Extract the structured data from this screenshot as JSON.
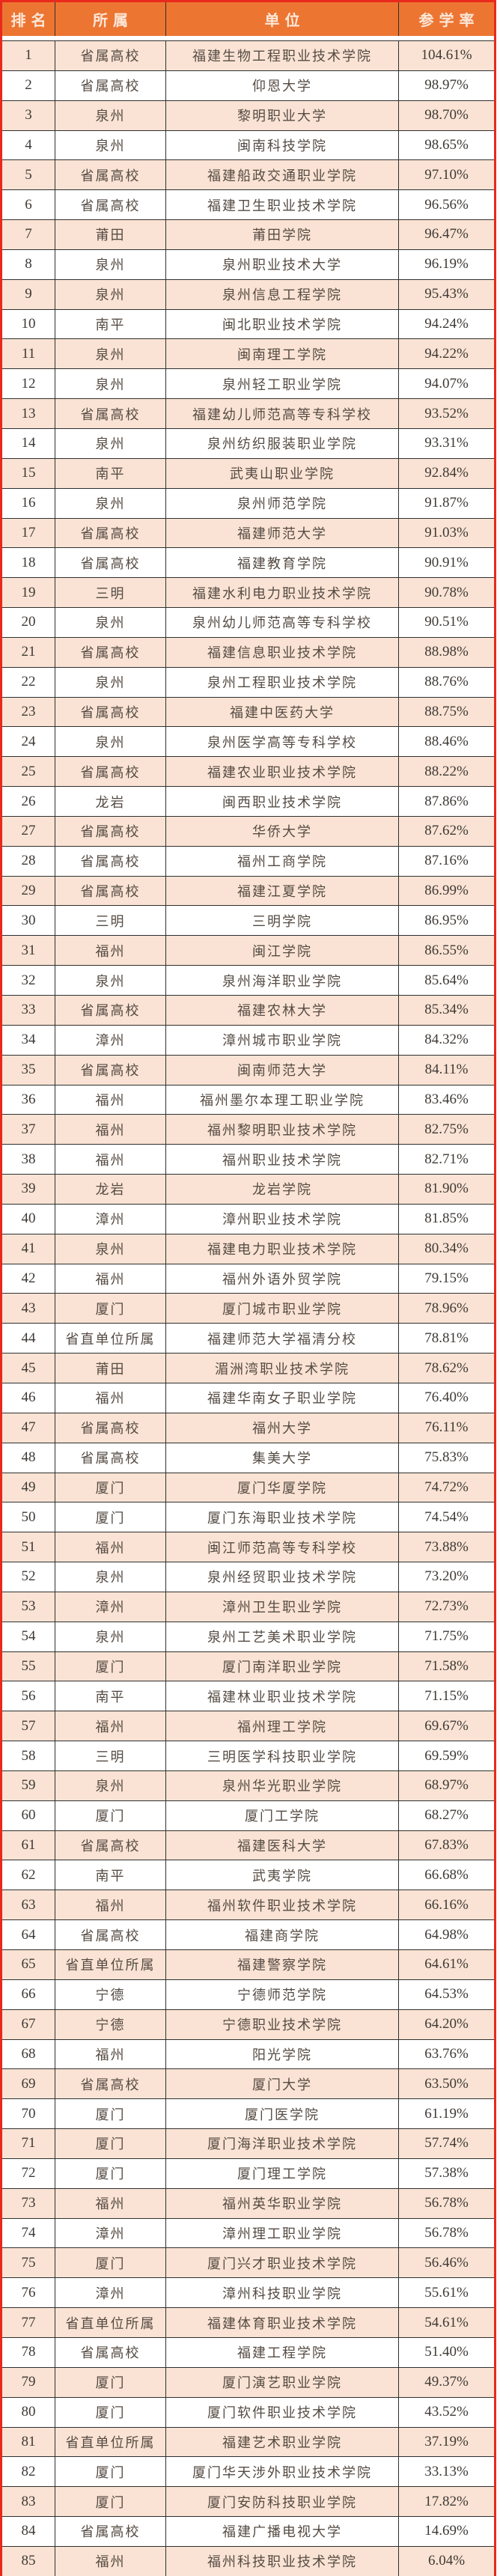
{
  "colors": {
    "header_bg": "#ED7532",
    "header_text": "#FCE8D9",
    "row_alt_bg": "#FAE3D4",
    "row_bg": "#FFFFFF",
    "outer_border": "#E8291B",
    "grid_line": "#2F2F2F",
    "body_text": "#554B43"
  },
  "table": {
    "headers": [
      "排名",
      "所属",
      "单位",
      "参学率"
    ],
    "rows": [
      {
        "rank": "1",
        "affiliation": "省属高校",
        "unit": "福建生物工程职业技术学院",
        "rate": "104.61%"
      },
      {
        "rank": "2",
        "affiliation": "省属高校",
        "unit": "仰恩大学",
        "rate": "98.97%"
      },
      {
        "rank": "3",
        "affiliation": "泉州",
        "unit": "黎明职业大学",
        "rate": "98.70%"
      },
      {
        "rank": "4",
        "affiliation": "泉州",
        "unit": "闽南科技学院",
        "rate": "98.65%"
      },
      {
        "rank": "5",
        "affiliation": "省属高校",
        "unit": "福建船政交通职业学院",
        "rate": "97.10%"
      },
      {
        "rank": "6",
        "affiliation": "省属高校",
        "unit": "福建卫生职业技术学院",
        "rate": "96.56%"
      },
      {
        "rank": "7",
        "affiliation": "莆田",
        "unit": "莆田学院",
        "rate": "96.47%"
      },
      {
        "rank": "8",
        "affiliation": "泉州",
        "unit": "泉州职业技术大学",
        "rate": "96.19%"
      },
      {
        "rank": "9",
        "affiliation": "泉州",
        "unit": "泉州信息工程学院",
        "rate": "95.43%"
      },
      {
        "rank": "10",
        "affiliation": "南平",
        "unit": "闽北职业技术学院",
        "rate": "94.24%"
      },
      {
        "rank": "11",
        "affiliation": "泉州",
        "unit": "闽南理工学院",
        "rate": "94.22%"
      },
      {
        "rank": "12",
        "affiliation": "泉州",
        "unit": "泉州轻工职业学院",
        "rate": "94.07%"
      },
      {
        "rank": "13",
        "affiliation": "省属高校",
        "unit": "福建幼儿师范高等专科学校",
        "rate": "93.52%"
      },
      {
        "rank": "14",
        "affiliation": "泉州",
        "unit": "泉州纺织服装职业学院",
        "rate": "93.31%"
      },
      {
        "rank": "15",
        "affiliation": "南平",
        "unit": "武夷山职业学院",
        "rate": "92.84%"
      },
      {
        "rank": "16",
        "affiliation": "泉州",
        "unit": "泉州师范学院",
        "rate": "91.87%"
      },
      {
        "rank": "17",
        "affiliation": "省属高校",
        "unit": "福建师范大学",
        "rate": "91.03%"
      },
      {
        "rank": "18",
        "affiliation": "省属高校",
        "unit": "福建教育学院",
        "rate": "90.91%"
      },
      {
        "rank": "19",
        "affiliation": "三明",
        "unit": "福建水利电力职业技术学院",
        "rate": "90.78%"
      },
      {
        "rank": "20",
        "affiliation": "泉州",
        "unit": "泉州幼儿师范高等专科学校",
        "rate": "90.51%"
      },
      {
        "rank": "21",
        "affiliation": "省属高校",
        "unit": "福建信息职业技术学院",
        "rate": "88.98%"
      },
      {
        "rank": "22",
        "affiliation": "泉州",
        "unit": "泉州工程职业技术学院",
        "rate": "88.76%"
      },
      {
        "rank": "23",
        "affiliation": "省属高校",
        "unit": "福建中医药大学",
        "rate": "88.75%"
      },
      {
        "rank": "24",
        "affiliation": "泉州",
        "unit": "泉州医学高等专科学校",
        "rate": "88.46%"
      },
      {
        "rank": "25",
        "affiliation": "省属高校",
        "unit": "福建农业职业技术学院",
        "rate": "88.22%"
      },
      {
        "rank": "26",
        "affiliation": "龙岩",
        "unit": "闽西职业技术学院",
        "rate": "87.86%"
      },
      {
        "rank": "27",
        "affiliation": "省属高校",
        "unit": "华侨大学",
        "rate": "87.62%"
      },
      {
        "rank": "28",
        "affiliation": "省属高校",
        "unit": "福州工商学院",
        "rate": "87.16%"
      },
      {
        "rank": "29",
        "affiliation": "省属高校",
        "unit": "福建江夏学院",
        "rate": "86.99%"
      },
      {
        "rank": "30",
        "affiliation": "三明",
        "unit": "三明学院",
        "rate": "86.95%"
      },
      {
        "rank": "31",
        "affiliation": "福州",
        "unit": "闽江学院",
        "rate": "86.55%"
      },
      {
        "rank": "32",
        "affiliation": "泉州",
        "unit": "泉州海洋职业学院",
        "rate": "85.64%"
      },
      {
        "rank": "33",
        "affiliation": "省属高校",
        "unit": "福建农林大学",
        "rate": "85.34%"
      },
      {
        "rank": "34",
        "affiliation": "漳州",
        "unit": "漳州城市职业学院",
        "rate": "84.32%"
      },
      {
        "rank": "35",
        "affiliation": "省属高校",
        "unit": "闽南师范大学",
        "rate": "84.11%"
      },
      {
        "rank": "36",
        "affiliation": "福州",
        "unit": "福州墨尔本理工职业学院",
        "rate": "83.46%"
      },
      {
        "rank": "37",
        "affiliation": "福州",
        "unit": "福州黎明职业技术学院",
        "rate": "82.75%"
      },
      {
        "rank": "38",
        "affiliation": "福州",
        "unit": "福州职业技术学院",
        "rate": "82.71%"
      },
      {
        "rank": "39",
        "affiliation": "龙岩",
        "unit": "龙岩学院",
        "rate": "81.90%"
      },
      {
        "rank": "40",
        "affiliation": "漳州",
        "unit": "漳州职业技术学院",
        "rate": "81.85%"
      },
      {
        "rank": "41",
        "affiliation": "泉州",
        "unit": "福建电力职业技术学院",
        "rate": "80.34%"
      },
      {
        "rank": "42",
        "affiliation": "福州",
        "unit": "福州外语外贸学院",
        "rate": "79.15%"
      },
      {
        "rank": "43",
        "affiliation": "厦门",
        "unit": "厦门城市职业学院",
        "rate": "78.96%"
      },
      {
        "rank": "44",
        "affiliation": "省直单位所属",
        "unit": "福建师范大学福清分校",
        "rate": "78.81%"
      },
      {
        "rank": "45",
        "affiliation": "莆田",
        "unit": "湄洲湾职业技术学院",
        "rate": "78.62%"
      },
      {
        "rank": "46",
        "affiliation": "福州",
        "unit": "福建华南女子职业学院",
        "rate": "76.40%"
      },
      {
        "rank": "47",
        "affiliation": "省属高校",
        "unit": "福州大学",
        "rate": "76.11%"
      },
      {
        "rank": "48",
        "affiliation": "省属高校",
        "unit": "集美大学",
        "rate": "75.83%"
      },
      {
        "rank": "49",
        "affiliation": "厦门",
        "unit": "厦门华厦学院",
        "rate": "74.72%"
      },
      {
        "rank": "50",
        "affiliation": "厦门",
        "unit": "厦门东海职业技术学院",
        "rate": "74.54%"
      },
      {
        "rank": "51",
        "affiliation": "福州",
        "unit": "闽江师范高等专科学校",
        "rate": "73.88%"
      },
      {
        "rank": "52",
        "affiliation": "泉州",
        "unit": "泉州经贸职业技术学院",
        "rate": "73.20%"
      },
      {
        "rank": "53",
        "affiliation": "漳州",
        "unit": "漳州卫生职业学院",
        "rate": "72.73%"
      },
      {
        "rank": "54",
        "affiliation": "泉州",
        "unit": "泉州工艺美术职业学院",
        "rate": "71.75%"
      },
      {
        "rank": "55",
        "affiliation": "厦门",
        "unit": "厦门南洋职业学院",
        "rate": "71.58%"
      },
      {
        "rank": "56",
        "affiliation": "南平",
        "unit": "福建林业职业技术学院",
        "rate": "71.15%"
      },
      {
        "rank": "57",
        "affiliation": "福州",
        "unit": "福州理工学院",
        "rate": "69.67%"
      },
      {
        "rank": "58",
        "affiliation": "三明",
        "unit": "三明医学科技职业学院",
        "rate": "69.59%"
      },
      {
        "rank": "59",
        "affiliation": "泉州",
        "unit": "泉州华光职业学院",
        "rate": "68.97%"
      },
      {
        "rank": "60",
        "affiliation": "厦门",
        "unit": "厦门工学院",
        "rate": "68.27%"
      },
      {
        "rank": "61",
        "affiliation": "省属高校",
        "unit": "福建医科大学",
        "rate": "67.83%"
      },
      {
        "rank": "62",
        "affiliation": "南平",
        "unit": "武夷学院",
        "rate": "66.68%"
      },
      {
        "rank": "63",
        "affiliation": "福州",
        "unit": "福州软件职业技术学院",
        "rate": "66.16%"
      },
      {
        "rank": "64",
        "affiliation": "省属高校",
        "unit": "福建商学院",
        "rate": "64.98%"
      },
      {
        "rank": "65",
        "affiliation": "省直单位所属",
        "unit": "福建警察学院",
        "rate": "64.61%"
      },
      {
        "rank": "66",
        "affiliation": "宁德",
        "unit": "宁德师范学院",
        "rate": "64.53%"
      },
      {
        "rank": "67",
        "affiliation": "宁德",
        "unit": "宁德职业技术学院",
        "rate": "64.20%"
      },
      {
        "rank": "68",
        "affiliation": "福州",
        "unit": "阳光学院",
        "rate": "63.76%"
      },
      {
        "rank": "69",
        "affiliation": "省属高校",
        "unit": "厦门大学",
        "rate": "63.50%"
      },
      {
        "rank": "70",
        "affiliation": "厦门",
        "unit": "厦门医学院",
        "rate": "61.19%"
      },
      {
        "rank": "71",
        "affiliation": "厦门",
        "unit": "厦门海洋职业技术学院",
        "rate": "57.74%"
      },
      {
        "rank": "72",
        "affiliation": "厦门",
        "unit": "厦门理工学院",
        "rate": "57.38%"
      },
      {
        "rank": "73",
        "affiliation": "福州",
        "unit": "福州英华职业学院",
        "rate": "56.78%"
      },
      {
        "rank": "74",
        "affiliation": "漳州",
        "unit": "漳州理工职业学院",
        "rate": "56.78%"
      },
      {
        "rank": "75",
        "affiliation": "厦门",
        "unit": "厦门兴才职业技术学院",
        "rate": "56.46%"
      },
      {
        "rank": "76",
        "affiliation": "漳州",
        "unit": "漳州科技职业学院",
        "rate": "55.61%"
      },
      {
        "rank": "77",
        "affiliation": "省直单位所属",
        "unit": "福建体育职业技术学院",
        "rate": "54.61%"
      },
      {
        "rank": "78",
        "affiliation": "省属高校",
        "unit": "福建工程学院",
        "rate": "51.40%"
      },
      {
        "rank": "79",
        "affiliation": "厦门",
        "unit": "厦门演艺职业学院",
        "rate": "49.37%"
      },
      {
        "rank": "80",
        "affiliation": "厦门",
        "unit": "厦门软件职业技术学院",
        "rate": "43.52%"
      },
      {
        "rank": "81",
        "affiliation": "省直单位所属",
        "unit": "福建艺术职业学院",
        "rate": "37.19%"
      },
      {
        "rank": "82",
        "affiliation": "厦门",
        "unit": "厦门华天涉外职业技术学院",
        "rate": "33.13%"
      },
      {
        "rank": "83",
        "affiliation": "厦门",
        "unit": "厦门安防科技职业学院",
        "rate": "17.82%"
      },
      {
        "rank": "84",
        "affiliation": "省属高校",
        "unit": "福建广播电视大学",
        "rate": "14.69%"
      },
      {
        "rank": "85",
        "affiliation": "福州",
        "unit": "福州科技职业技术学院",
        "rate": "6.04%"
      }
    ]
  }
}
